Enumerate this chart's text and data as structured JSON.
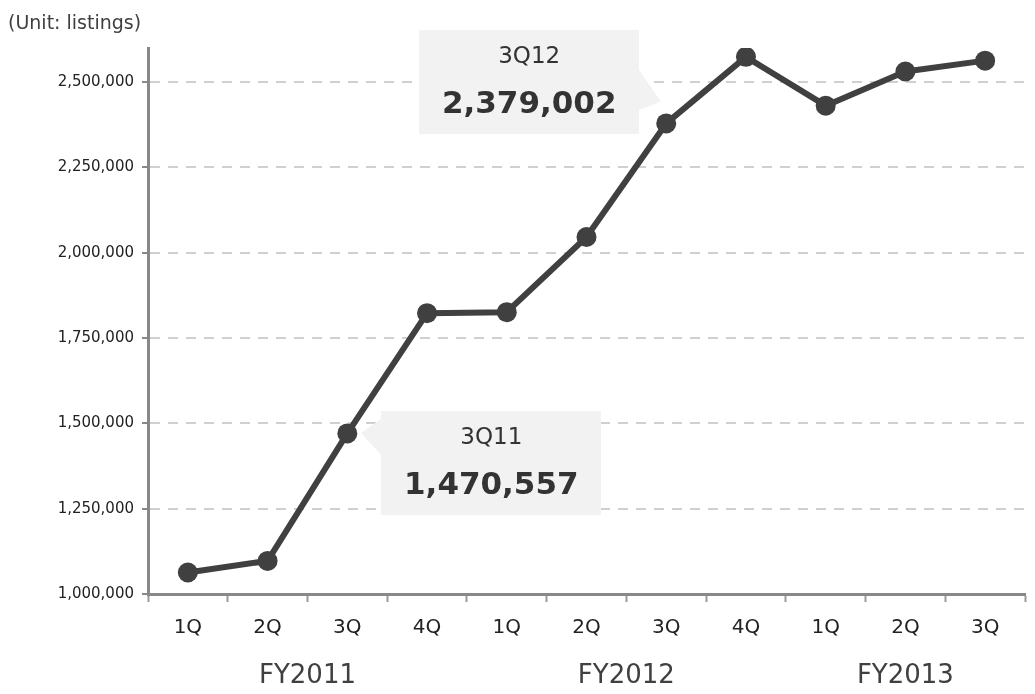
{
  "chart_data": {
    "type": "line",
    "ylabel": "(Unit: listings)",
    "categories": [
      "1Q",
      "2Q",
      "3Q",
      "4Q",
      "1Q",
      "2Q",
      "3Q",
      "4Q",
      "1Q",
      "2Q",
      "3Q"
    ],
    "series": [
      {
        "color": "#404040",
        "values": [
          1063000,
          1097000,
          1470557,
          1823000,
          1826000,
          2046000,
          2379002,
          2574000,
          2431000,
          2531000,
          2563000
        ],
        "value_labels": [
          null,
          null,
          "1,470,557",
          null,
          null,
          null,
          "2,379,002",
          null,
          null,
          null,
          null
        ]
      }
    ],
    "annotations": [
      "3Q11",
      "3Q12",
      "FY2011",
      "FY2012",
      "FY2013"
    ],
    "ylim": [
      1000000,
      2600000
    ],
    "yticks": [
      {
        "value": 1000000,
        "label": "1,000,000"
      },
      {
        "value": 1250000,
        "label": "1,250,000"
      },
      {
        "value": 1500000,
        "label": "1,500,000"
      },
      {
        "value": 1750000,
        "label": "1,750,000"
      },
      {
        "value": 2000000,
        "label": "2,000,000"
      },
      {
        "value": 2250000,
        "label": "2,250,000"
      },
      {
        "value": 2500000,
        "label": "2,500,000"
      }
    ],
    "grid": "y",
    "legend": false,
    "marker": "circle",
    "line_style": "solid"
  }
}
